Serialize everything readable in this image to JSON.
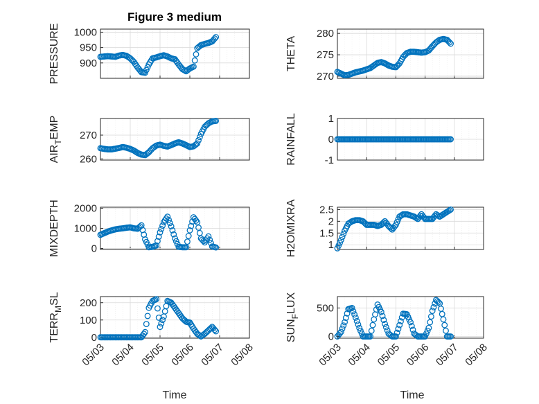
{
  "title": "Figure 3 medium",
  "marker_color": "#0072bd",
  "x_axis": {
    "type": "date",
    "ticks": [
      "05/03",
      "05/04",
      "05/05",
      "05/06",
      "05/07",
      "05/08"
    ],
    "xlim": [
      "05/03",
      "05/08"
    ],
    "xlabel": "Time"
  },
  "chart_data": [
    {
      "type": "scatter",
      "ylabel": "PRESSURE",
      "ylim": [
        850,
        1010
      ],
      "yticks": [
        900,
        950,
        1000
      ],
      "grid": true,
      "x": [
        "05/03 00:00",
        "05/03 03:00",
        "05/03 06:00",
        "05/03 09:00",
        "05/03 12:00",
        "05/03 15:00",
        "05/03 18:00",
        "05/03 21:00",
        "05/04 00:00",
        "05/04 03:00",
        "05/04 06:00",
        "05/04 09:00",
        "05/04 12:00",
        "05/04 15:00",
        "05/04 18:00",
        "05/04 21:00",
        "05/05 00:00",
        "05/05 03:00",
        "05/05 06:00",
        "05/05 09:00",
        "05/05 12:00",
        "05/05 15:00",
        "05/05 18:00",
        "05/05 21:00",
        "05/06 00:00",
        "05/06 03:00",
        "05/06 06:00",
        "05/06 09:00",
        "05/06 12:00",
        "05/06 15:00",
        "05/06 18:00",
        "05/06 21:00"
      ],
      "y": [
        920,
        921,
        922,
        921,
        920,
        924,
        926,
        923,
        915,
        903,
        885,
        870,
        868,
        895,
        915,
        918,
        922,
        925,
        921,
        915,
        912,
        895,
        880,
        873,
        882,
        888,
        948,
        958,
        962,
        965,
        970,
        984
      ]
    },
    {
      "type": "scatter",
      "ylabel": "THETA",
      "ylim": [
        269.5,
        281
      ],
      "yticks": [
        270,
        275,
        280
      ],
      "grid": true,
      "x": [
        "05/03 00:00",
        "05/03 03:00",
        "05/03 06:00",
        "05/03 09:00",
        "05/03 12:00",
        "05/03 15:00",
        "05/03 18:00",
        "05/03 21:00",
        "05/04 00:00",
        "05/04 03:00",
        "05/04 06:00",
        "05/04 09:00",
        "05/04 12:00",
        "05/04 15:00",
        "05/04 18:00",
        "05/04 21:00",
        "05/05 00:00",
        "05/05 03:00",
        "05/05 06:00",
        "05/05 09:00",
        "05/05 12:00",
        "05/05 15:00",
        "05/05 18:00",
        "05/05 21:00",
        "05/06 00:00",
        "05/06 03:00",
        "05/06 06:00",
        "05/06 09:00",
        "05/06 12:00",
        "05/06 15:00",
        "05/06 18:00",
        "05/06 21:00"
      ],
      "y": [
        271.0,
        270.6,
        270.2,
        270.3,
        270.6,
        270.9,
        271.1,
        271.3,
        271.6,
        271.9,
        272.5,
        273.1,
        273.3,
        273.0,
        272.5,
        272.2,
        272.1,
        273.0,
        274.5,
        275.4,
        275.7,
        275.7,
        275.6,
        275.5,
        275.6,
        276.0,
        277.0,
        277.9,
        278.5,
        278.7,
        278.5,
        277.6
      ]
    },
    {
      "type": "scatter",
      "ylabel": "AIR_TEMP",
      "ylim": [
        259.5,
        277
      ],
      "yticks": [
        260,
        270
      ],
      "grid": true,
      "x": [
        "05/03 00:00",
        "05/03 03:00",
        "05/03 06:00",
        "05/03 09:00",
        "05/03 12:00",
        "05/03 15:00",
        "05/03 18:00",
        "05/03 21:00",
        "05/04 00:00",
        "05/04 03:00",
        "05/04 06:00",
        "05/04 09:00",
        "05/04 12:00",
        "05/04 15:00",
        "05/04 18:00",
        "05/04 21:00",
        "05/05 00:00",
        "05/05 03:00",
        "05/05 06:00",
        "05/05 09:00",
        "05/05 12:00",
        "05/05 15:00",
        "05/05 18:00",
        "05/05 21:00",
        "05/06 00:00",
        "05/06 03:00",
        "05/06 06:00",
        "05/06 09:00",
        "05/06 12:00",
        "05/06 15:00",
        "05/06 18:00",
        "05/06 21:00"
      ],
      "y": [
        264.5,
        264.2,
        264.0,
        264.0,
        264.3,
        264.6,
        265.0,
        264.7,
        264.2,
        263.5,
        262.5,
        261.8,
        261.6,
        262.8,
        264.5,
        265.6,
        266.0,
        265.5,
        265.2,
        265.8,
        266.5,
        267.0,
        266.5,
        265.8,
        265.0,
        265.3,
        266.5,
        270.5,
        273.5,
        275.0,
        275.8,
        276.0
      ]
    },
    {
      "type": "scatter",
      "ylabel": "RAINFALL",
      "ylim": [
        -1,
        1
      ],
      "yticks": [
        -1,
        0,
        1
      ],
      "grid": true,
      "x": [
        "05/03 00:00",
        "05/03 03:00",
        "05/03 06:00",
        "05/03 09:00",
        "05/03 12:00",
        "05/03 15:00",
        "05/03 18:00",
        "05/03 21:00",
        "05/04 00:00",
        "05/04 03:00",
        "05/04 06:00",
        "05/04 09:00",
        "05/04 12:00",
        "05/04 15:00",
        "05/04 18:00",
        "05/04 21:00",
        "05/05 00:00",
        "05/05 03:00",
        "05/05 06:00",
        "05/05 09:00",
        "05/05 12:00",
        "05/05 15:00",
        "05/05 18:00",
        "05/05 21:00",
        "05/06 00:00",
        "05/06 03:00",
        "05/06 06:00",
        "05/06 09:00",
        "05/06 12:00",
        "05/06 15:00",
        "05/06 18:00",
        "05/06 21:00"
      ],
      "y": [
        0,
        0,
        0,
        0,
        0,
        0,
        0,
        0,
        0,
        0,
        0,
        0,
        0,
        0,
        0,
        0,
        0,
        0,
        0,
        0,
        0,
        0,
        0,
        0,
        0,
        0,
        0,
        0,
        0,
        0,
        0,
        0
      ]
    },
    {
      "type": "scatter",
      "ylabel": "MIXDEPTH",
      "ylim": [
        -50,
        2050
      ],
      "yticks": [
        0,
        1000,
        2000
      ],
      "grid": true,
      "x": [
        "05/03 00:00",
        "05/03 03:00",
        "05/03 06:00",
        "05/03 09:00",
        "05/03 12:00",
        "05/03 15:00",
        "05/03 18:00",
        "05/03 21:00",
        "05/04 00:00",
        "05/04 03:00",
        "05/04 06:00",
        "05/04 09:00",
        "05/04 12:00",
        "05/04 15:00",
        "05/04 18:00",
        "05/04 21:00",
        "05/05 00:00",
        "05/05 03:00",
        "05/05 06:00",
        "05/05 09:00",
        "05/05 12:00",
        "05/05 15:00",
        "05/05 18:00",
        "05/05 21:00",
        "05/06 00:00",
        "05/06 03:00",
        "05/06 06:00",
        "05/06 09:00",
        "05/06 12:00",
        "05/06 15:00",
        "05/06 18:00",
        "05/06 21:00"
      ],
      "y": [
        680,
        760,
        840,
        900,
        950,
        980,
        1000,
        1030,
        1050,
        1000,
        980,
        1150,
        450,
        60,
        80,
        150,
        800,
        1300,
        1580,
        1100,
        500,
        80,
        60,
        60,
        900,
        1550,
        1300,
        500,
        300,
        600,
        100,
        50
      ]
    },
    {
      "type": "scatter",
      "ylabel": "H2OMIXRA",
      "ylim": [
        0.8,
        2.6
      ],
      "yticks": [
        1,
        1.5,
        2,
        2.5
      ],
      "grid": true,
      "x": [
        "05/03 00:00",
        "05/03 03:00",
        "05/03 06:00",
        "05/03 09:00",
        "05/03 12:00",
        "05/03 15:00",
        "05/03 18:00",
        "05/03 21:00",
        "05/04 00:00",
        "05/04 03:00",
        "05/04 06:00",
        "05/04 09:00",
        "05/04 12:00",
        "05/04 15:00",
        "05/04 18:00",
        "05/04 21:00",
        "05/05 00:00",
        "05/05 03:00",
        "05/05 06:00",
        "05/05 09:00",
        "05/05 12:00",
        "05/05 15:00",
        "05/05 18:00",
        "05/05 21:00",
        "05/06 00:00",
        "05/06 03:00",
        "05/06 06:00",
        "05/06 09:00",
        "05/06 12:00",
        "05/06 15:00",
        "05/06 18:00",
        "05/06 21:00"
      ],
      "y": [
        0.85,
        1.2,
        1.6,
        1.9,
        2.0,
        2.05,
        2.05,
        2.0,
        1.85,
        1.85,
        1.85,
        1.8,
        1.85,
        2.0,
        1.8,
        1.65,
        1.85,
        2.2,
        2.3,
        2.3,
        2.25,
        2.2,
        2.1,
        2.3,
        2.1,
        2.1,
        2.1,
        2.3,
        2.2,
        2.3,
        2.4,
        2.5
      ]
    },
    {
      "type": "scatter",
      "ylabel": "TERR_MSL",
      "ylim": [
        -5,
        235
      ],
      "yticks": [
        0,
        100,
        200
      ],
      "grid": true,
      "x": [
        "05/03 00:00",
        "05/03 03:00",
        "05/03 06:00",
        "05/03 09:00",
        "05/03 12:00",
        "05/03 15:00",
        "05/03 18:00",
        "05/03 21:00",
        "05/04 00:00",
        "05/04 03:00",
        "05/04 06:00",
        "05/04 09:00",
        "05/04 12:00",
        "05/04 15:00",
        "05/04 18:00",
        "05/04 21:00",
        "05/05 00:00",
        "05/05 03:00",
        "05/05 06:00",
        "05/05 09:00",
        "05/05 12:00",
        "05/05 15:00",
        "05/05 18:00",
        "05/05 21:00",
        "05/06 00:00",
        "05/06 03:00",
        "05/06 06:00",
        "05/06 09:00",
        "05/06 12:00",
        "05/06 15:00",
        "05/06 18:00",
        "05/06 21:00"
      ],
      "y": [
        0,
        0,
        0,
        0,
        0,
        0,
        0,
        0,
        0,
        0,
        0,
        0,
        30,
        170,
        210,
        220,
        60,
        120,
        210,
        200,
        170,
        140,
        110,
        90,
        85,
        50,
        20,
        5,
        20,
        40,
        60,
        35
      ]
    },
    {
      "type": "scatter",
      "ylabel": "SUN_FLUX",
      "ylim": [
        -30,
        700
      ],
      "yticks": [
        0,
        500
      ],
      "grid": true,
      "x": [
        "05/03 00:00",
        "05/03 03:00",
        "05/03 06:00",
        "05/03 09:00",
        "05/03 12:00",
        "05/03 15:00",
        "05/03 18:00",
        "05/03 21:00",
        "05/04 00:00",
        "05/04 03:00",
        "05/04 06:00",
        "05/04 09:00",
        "05/04 12:00",
        "05/04 15:00",
        "05/04 18:00",
        "05/04 21:00",
        "05/05 00:00",
        "05/05 03:00",
        "05/05 06:00",
        "05/05 09:00",
        "05/05 12:00",
        "05/05 15:00",
        "05/05 18:00",
        "05/05 21:00",
        "05/06 00:00",
        "05/06 03:00",
        "05/06 06:00",
        "05/06 09:00",
        "05/06 12:00",
        "05/06 15:00",
        "05/06 18:00",
        "05/06 21:00"
      ],
      "y": [
        0,
        80,
        250,
        480,
        500,
        330,
        150,
        0,
        0,
        0,
        300,
        560,
        430,
        220,
        50,
        0,
        0,
        200,
        400,
        390,
        250,
        50,
        0,
        0,
        0,
        150,
        450,
        640,
        580,
        300,
        0,
        0
      ]
    }
  ]
}
